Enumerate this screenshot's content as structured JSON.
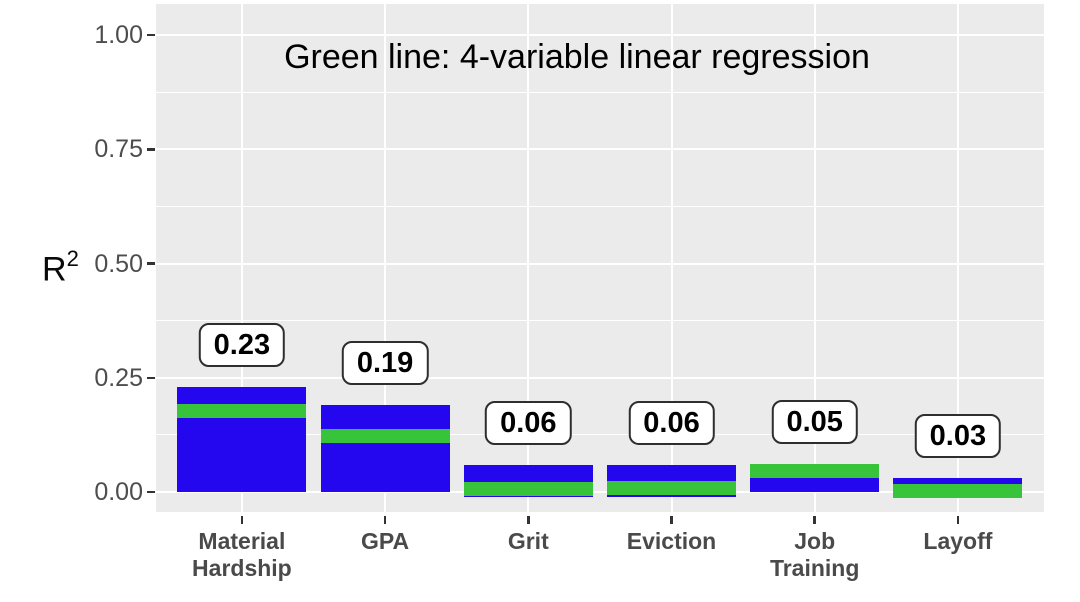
{
  "figure": {
    "background": "#FFFFFF",
    "panel_background": "#EBEBEB",
    "gridline_color": "#FFFFFF",
    "tick_mark_color": "#333333",
    "axis_text_color": "#4D4D4D"
  },
  "chart_data": {
    "type": "bar",
    "annotation": "Green line: 4-variable linear regression",
    "ylim": [
      0,
      1
    ],
    "grid": true,
    "legend_position": "none",
    "y_axis": {
      "label_base": "R",
      "label_sup": "2",
      "ticks": [
        {
          "value": 1.0,
          "label": "1.00"
        },
        {
          "value": 0.75,
          "label": "0.75"
        },
        {
          "value": 0.5,
          "label": "0.50"
        },
        {
          "value": 0.25,
          "label": "0.25"
        },
        {
          "value": 0.0,
          "label": "0.00"
        }
      ],
      "minor_gridlines": [
        0.125,
        0.375,
        0.625,
        0.875
      ]
    },
    "categories": [
      "Material Hardship",
      "GPA",
      "Grit",
      "Eviction",
      "Job Training",
      "Layoff"
    ],
    "category_display_lines": [
      [
        "Material",
        "Hardship"
      ],
      [
        "GPA"
      ],
      [
        "Grit"
      ],
      [
        "Eviction"
      ],
      [
        "Job",
        "Training"
      ],
      [
        "Layoff"
      ]
    ],
    "series": [
      {
        "id": "blue-bar-r-squared",
        "style": "bar",
        "color": "#2407EE",
        "values": [
          0.23,
          0.19,
          0.06,
          0.06,
          0.05,
          0.03
        ]
      },
      {
        "id": "green-line-4-variable-linear-regression",
        "style": "thick-line",
        "color": "#38C43A",
        "values": [
          0.178,
          0.122,
          0.007,
          0.008,
          0.047,
          0.002
        ]
      }
    ],
    "value_labels": [
      "0.23",
      "0.19",
      "0.06",
      "0.06",
      "0.05",
      "0.03"
    ]
  }
}
